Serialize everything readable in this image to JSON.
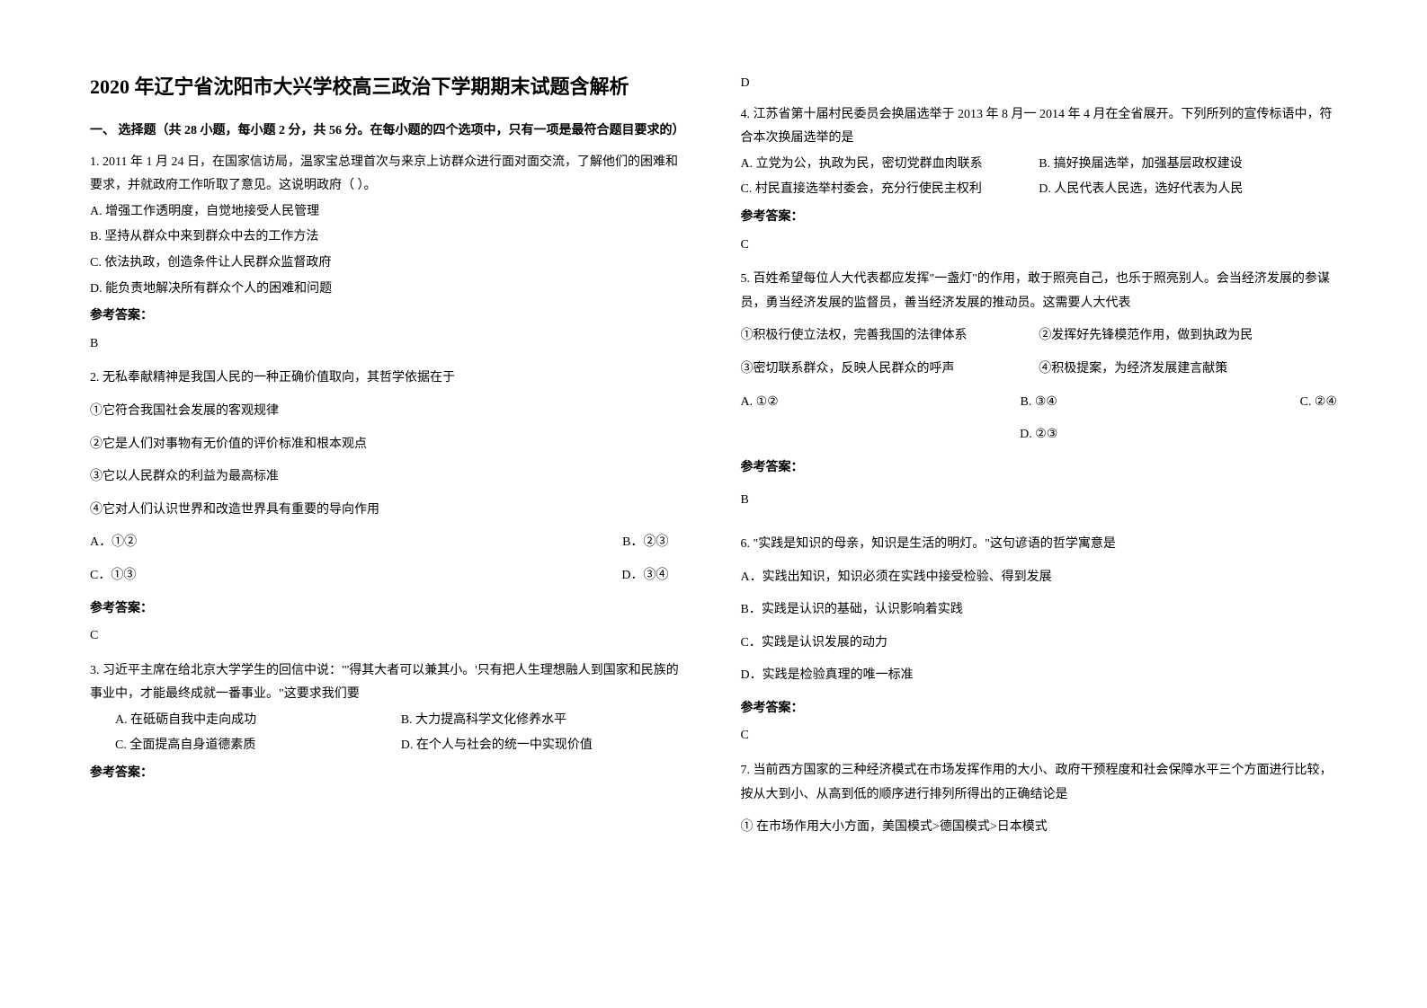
{
  "title": "2020 年辽宁省沈阳市大兴学校高三政治下学期期末试题含解析",
  "section1_header": "一、 选择题（共 28 小题，每小题 2 分，共 56 分。在每小题的四个选项中，只有一项是最符合题目要求的）",
  "q1": {
    "text": "1. 2011 年 1 月 24 日，在国家信访局，温家宝总理首次与来京上访群众进行面对面交流，了解他们的困难和要求，并就政府工作听取了意见。这说明政府（  ）。",
    "optA": "A. 增强工作透明度，自觉地接受人民管理",
    "optB": "B. 坚持从群众中来到群众中去的工作方法",
    "optC": "C. 依法执政，创造条件让人民群众监督政府",
    "optD": "D. 能负责地解决所有群众个人的困难和问题",
    "answer_label": "参考答案：",
    "answer": "B"
  },
  "q2": {
    "text": "2. 无私奉献精神是我国人民的一种正确价值取向，其哲学依据在于",
    "c1": "①它符合我国社会发展的客观规律",
    "c2": "②它是人们对事物有无价值的评价标准和根本观点",
    "c3": "③它以人民群众的利益为最高标准",
    "c4": "④它对人们认识世界和改造世界具有重要的导向作用",
    "optA": "A．①②",
    "optB": "B．②③",
    "optC": "C．①③",
    "optD": "D．③④",
    "answer_label": "参考答案：",
    "answer": "C"
  },
  "q3": {
    "text": "3. 习近平主席在给北京大学学生的回信中说：\"'得其大者可以兼其小。'只有把人生理想融人到国家和民族的事业中，才能最终成就一番事业。\"这要求我们要",
    "optA": "A. 在砥砺自我中走向成功",
    "optB": "B. 大力提高科学文化修养水平",
    "optC": "C. 全面提高自身道德素质",
    "optD": "D. 在个人与社会的统一中实现价值",
    "answer_label": "参考答案：",
    "answer": "D"
  },
  "q4": {
    "text": "4. 江苏省第十届村民委员会换届选举于 2013 年 8 月一 2014 年 4 月在全省展开。下列所列的宣传标语中，符合本次换届选举的是",
    "optA": "A. 立党为公，执政为民，密切党群血肉联系",
    "optB": "B. 搞好换届选举，加强基层政权建设",
    "optC": "C. 村民直接选举村委会，充分行使民主权利",
    "optD": "D. 人民代表人民选，选好代表为人民",
    "answer_label": "参考答案：",
    "answer": "C"
  },
  "q5": {
    "text": "5. 百姓希望每位人大代表都应发挥\"一盏灯\"的作用，敢于照亮自己，也乐于照亮别人。会当经济发展的参谋员，勇当经济发展的监督员，善当经济发展的推动员。这需要人大代表",
    "c1": "①积极行使立法权，完善我国的法律体系",
    "c2": "②发挥好先锋模范作用，做到执政为民",
    "c3": "③密切联系群众，反映人民群众的呼声",
    "c4": "④积极提案，为经济发展建言献策",
    "optA": "A. ①②",
    "optB": "B. ③④",
    "optC": "C. ②④",
    "optD": "D. ②③",
    "answer_label": "参考答案：",
    "answer": "B"
  },
  "q6": {
    "text": "6. \"实践是知识的母亲，知识是生活的明灯。\"这句谚语的哲学寓意是",
    "optA": "A．实践出知识，知识必须在实践中接受检验、得到发展",
    "optB": "B．实践是认识的基础，认识影响着实践",
    "optC": "C．实践是认识发展的动力",
    "optD": "D．实践是检验真理的唯一标准",
    "answer_label": "参考答案：",
    "answer": "C"
  },
  "q7": {
    "text": "7. 当前西方国家的三种经济模式在市场发挥作用的大小、政府干预程度和社会保障水平三个方面进行比较，按从大到小、从高到低的顺序进行排列所得出的正确结论是",
    "c1": "① 在市场作用大小方面，美国模式>德国模式>日本模式"
  }
}
